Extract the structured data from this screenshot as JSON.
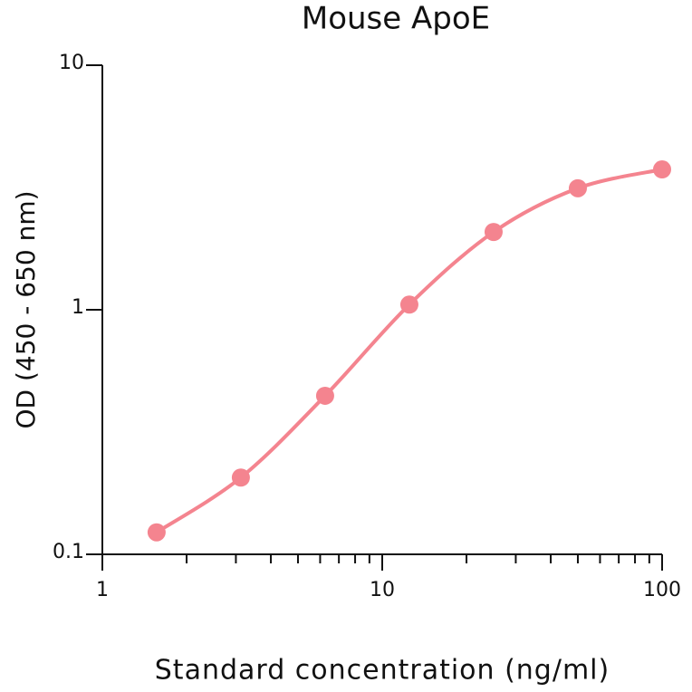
{
  "chart_data": {
    "type": "scatter",
    "title": "Mouse ApoE",
    "x_label": "Standard concentration (ng/ml)",
    "y_label": "OD (450 - 650 nm)",
    "log_x": true,
    "log_y": true,
    "smooth_line": true,
    "series": [
      {
        "color": "#f4848f",
        "x": [
          1.5625,
          3.125,
          6.25,
          12.5,
          25,
          50,
          100
        ],
        "values": [
          0.123,
          0.206,
          0.445,
          1.05,
          2.08,
          3.14,
          3.75
        ]
      }
    ],
    "xlim": [
      1,
      100
    ],
    "xticks": [
      1,
      10,
      100
    ],
    "xminor_ticks": [
      2,
      3,
      4,
      5,
      6,
      7,
      8,
      9,
      20,
      30,
      40,
      50,
      60,
      70,
      80,
      90
    ],
    "ylim": [
      0.1,
      10
    ],
    "yticks": [
      0.1,
      1,
      10
    ]
  }
}
